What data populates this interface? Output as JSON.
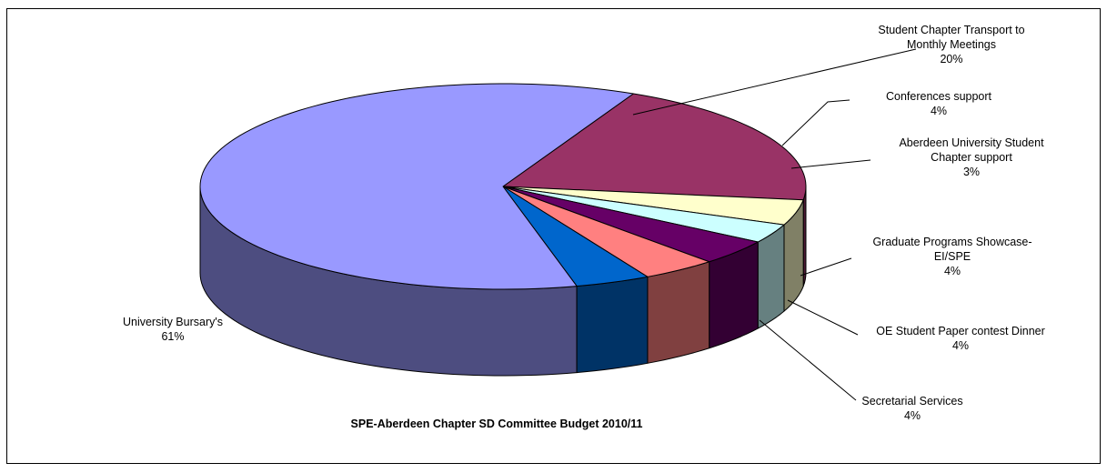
{
  "chart_data": {
    "type": "pie",
    "style": "3d-pie",
    "title": "SPE-Aberdeen Chapter SD Committee Budget 2010/11",
    "legend": "none",
    "slices": [
      {
        "label_lines": [
          "Student Chapter Transport to",
          "Monthly Meetings"
        ],
        "value": 20,
        "percent_label": "20%",
        "color": "#993366"
      },
      {
        "label_lines": [
          "Conferences support"
        ],
        "value": 4,
        "percent_label": "4%",
        "color": "#FFFFCC"
      },
      {
        "label_lines": [
          "Aberdeen University Student",
          "Chapter support"
        ],
        "value": 3,
        "percent_label": "3%",
        "color": "#CCFFFF"
      },
      {
        "label_lines": [
          "Graduate Programs Showcase-",
          "EI/SPE"
        ],
        "value": 4,
        "percent_label": "4%",
        "color": "#660066"
      },
      {
        "label_lines": [
          "OE Student Paper contest Dinner"
        ],
        "value": 4,
        "percent_label": "4%",
        "color": "#FF8080"
      },
      {
        "label_lines": [
          "Secretarial Services"
        ],
        "value": 4,
        "percent_label": "4%",
        "color": "#0066CC"
      },
      {
        "label_lines": [
          "University Bursary's"
        ],
        "value": 61,
        "percent_label": "61%",
        "color": "#9999FF"
      }
    ]
  }
}
